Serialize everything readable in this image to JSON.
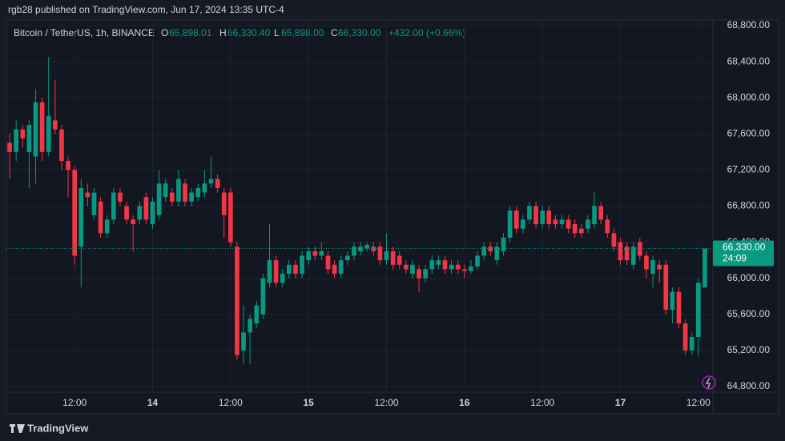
{
  "chart_data": {
    "type": "candlestick",
    "title": "rgb28 published on TradingView.com, Jun 17, 2024 13:35 UTC-4",
    "symbol": "Bitcoin / TetherUS, 1h, BINANCE",
    "legend": [
      {
        "key": "O",
        "value": "65,898.01"
      },
      {
        "key": "H",
        "value": "66,330.40"
      },
      {
        "key": "L",
        "value": "65,898.00"
      },
      {
        "key": "C",
        "value": "66,330.00"
      }
    ],
    "change": "+432.00 (+0.66%)",
    "last_price_label": "66,330.00",
    "countdown": "24:09",
    "brand": "TradingView",
    "up_color": "#089981",
    "down_color": "#f23645",
    "ylim": [
      64738,
      68862
    ],
    "yticks": [
      {
        "value": 64800,
        "label": "64,800.00"
      },
      {
        "value": 65200,
        "label": "65,200.00"
      },
      {
        "value": 65600,
        "label": "65,600.00"
      },
      {
        "value": 66000,
        "label": "66,000.00"
      },
      {
        "value": 66400,
        "label": "66,400.00"
      },
      {
        "value": 66800,
        "label": "66,800.00"
      },
      {
        "value": 67200,
        "label": "67,200.00"
      },
      {
        "value": 67600,
        "label": "67,600.00"
      },
      {
        "value": 68000,
        "label": "68,000.00"
      },
      {
        "value": 68400,
        "label": "68,400.00"
      },
      {
        "value": 68800,
        "label": "68,800.00"
      }
    ],
    "xticks": [
      {
        "value": 10,
        "label": "12:00"
      },
      {
        "value": 22,
        "label": "14"
      },
      {
        "value": 34,
        "label": "12:00"
      },
      {
        "value": 46,
        "label": "15"
      },
      {
        "value": 58,
        "label": "12:00"
      },
      {
        "value": 70,
        "label": "16"
      },
      {
        "value": 82,
        "label": "12:00"
      },
      {
        "value": 94,
        "label": "17"
      },
      {
        "value": 106,
        "label": "12:00"
      }
    ],
    "ohlc": [
      [
        67500,
        67600,
        67100,
        67400
      ],
      [
        67400,
        67750,
        67300,
        67650
      ],
      [
        67650,
        67700,
        67450,
        67550
      ],
      [
        67400,
        67750,
        67000,
        67700
      ],
      [
        67350,
        68100,
        67050,
        67950
      ],
      [
        67950,
        68000,
        67300,
        67400
      ],
      [
        67400,
        68450,
        67350,
        67800
      ],
      [
        67750,
        68200,
        67600,
        67650
      ],
      [
        67650,
        67700,
        67200,
        67300
      ],
      [
        67300,
        67350,
        66900,
        67200
      ],
      [
        67200,
        67250,
        66150,
        66250
      ],
      [
        66350,
        67100,
        65900,
        67000
      ],
      [
        66950,
        67050,
        66800,
        66900
      ],
      [
        66700,
        67000,
        66650,
        66950
      ],
      [
        66850,
        66900,
        66450,
        66500
      ],
      [
        66500,
        66700,
        66450,
        66650
      ],
      [
        66650,
        67000,
        66600,
        66950
      ],
      [
        66950,
        67000,
        66800,
        66850
      ],
      [
        66800,
        66850,
        66600,
        66650
      ],
      [
        66650,
        66700,
        66300,
        66600
      ],
      [
        66650,
        66850,
        66600,
        66800
      ],
      [
        66900,
        66950,
        66600,
        66650
      ],
      [
        66600,
        66900,
        66550,
        66850
      ],
      [
        66700,
        67200,
        66650,
        67050
      ],
      [
        66900,
        67100,
        66850,
        67050
      ],
      [
        66950,
        67000,
        66800,
        66850
      ],
      [
        66850,
        67200,
        66800,
        67100
      ],
      [
        67050,
        67100,
        66800,
        66850
      ],
      [
        66850,
        67000,
        66800,
        66950
      ],
      [
        66900,
        67050,
        66850,
        67000
      ],
      [
        66950,
        67200,
        66900,
        67050
      ],
      [
        67050,
        67350,
        67000,
        67100
      ],
      [
        67100,
        67150,
        66950,
        67000
      ],
      [
        66950,
        67000,
        66450,
        66700
      ],
      [
        66950,
        67000,
        66350,
        66400
      ],
      [
        66350,
        66400,
        65100,
        65150
      ],
      [
        65200,
        65700,
        65050,
        65400
      ],
      [
        65400,
        65600,
        65050,
        65550
      ],
      [
        65500,
        65750,
        65450,
        65700
      ],
      [
        65600,
        66050,
        65550,
        66000
      ],
      [
        65950,
        66600,
        65900,
        66200
      ],
      [
        66200,
        66250,
        65900,
        65950
      ],
      [
        65950,
        66100,
        65900,
        66050
      ],
      [
        66050,
        66200,
        66000,
        66150
      ],
      [
        66150,
        66200,
        66000,
        66050
      ],
      [
        66050,
        66300,
        66000,
        66250
      ],
      [
        66200,
        66350,
        66150,
        66300
      ],
      [
        66300,
        66350,
        66200,
        66250
      ],
      [
        66250,
        66400,
        66200,
        66300
      ],
      [
        66250,
        66300,
        66050,
        66100
      ],
      [
        66150,
        66200,
        66000,
        66050
      ],
      [
        66050,
        66250,
        66000,
        66200
      ],
      [
        66200,
        66300,
        66150,
        66250
      ],
      [
        66250,
        66400,
        66200,
        66350
      ],
      [
        66300,
        66400,
        66250,
        66350
      ],
      [
        66330,
        66400,
        66300,
        66370
      ],
      [
        66350,
        66400,
        66250,
        66300
      ],
      [
        66350,
        66400,
        66150,
        66200
      ],
      [
        66200,
        66500,
        66150,
        66300
      ],
      [
        66300,
        66350,
        66100,
        66150
      ],
      [
        66250,
        66300,
        66100,
        66150
      ],
      [
        66150,
        66200,
        66050,
        66100
      ],
      [
        66050,
        66200,
        66000,
        66150
      ],
      [
        66100,
        66150,
        65850,
        66000
      ],
      [
        66000,
        66150,
        65950,
        66100
      ],
      [
        66100,
        66250,
        66050,
        66200
      ],
      [
        66150,
        66250,
        66100,
        66200
      ],
      [
        66200,
        66250,
        66050,
        66100
      ],
      [
        66100,
        66200,
        66050,
        66150
      ],
      [
        66150,
        66200,
        66050,
        66100
      ],
      [
        66100,
        66150,
        66000,
        66080
      ],
      [
        66080,
        66200,
        66050,
        66130
      ],
      [
        66130,
        66300,
        66100,
        66250
      ],
      [
        66250,
        66400,
        66200,
        66350
      ],
      [
        66350,
        66400,
        66250,
        66300
      ],
      [
        66200,
        66400,
        66150,
        66350
      ],
      [
        66300,
        66500,
        66250,
        66450
      ],
      [
        66450,
        66800,
        66400,
        66750
      ],
      [
        66750,
        66800,
        66500,
        66550
      ],
      [
        66550,
        66700,
        66500,
        66650
      ],
      [
        66650,
        66850,
        66600,
        66800
      ],
      [
        66800,
        66850,
        66550,
        66600
      ],
      [
        66600,
        66800,
        66550,
        66750
      ],
      [
        66750,
        66800,
        66550,
        66600
      ],
      [
        66650,
        66700,
        66550,
        66600
      ],
      [
        66600,
        66700,
        66550,
        66650
      ],
      [
        66650,
        66700,
        66500,
        66550
      ],
      [
        66600,
        66650,
        66450,
        66500
      ],
      [
        66550,
        66600,
        66450,
        66500
      ],
      [
        66550,
        66700,
        66500,
        66650
      ],
      [
        66600,
        66950,
        66550,
        66800
      ],
      [
        66800,
        66850,
        66600,
        66650
      ],
      [
        66650,
        66700,
        66450,
        66500
      ],
      [
        66500,
        66550,
        66300,
        66350
      ],
      [
        66400,
        66450,
        66150,
        66200
      ],
      [
        66350,
        66400,
        66150,
        66200
      ],
      [
        66150,
        66400,
        66100,
        66350
      ],
      [
        66400,
        66450,
        66200,
        66250
      ],
      [
        66250,
        66300,
        66000,
        66100
      ],
      [
        66050,
        66250,
        65900,
        66200
      ],
      [
        66150,
        66200,
        65950,
        66100
      ],
      [
        66150,
        66200,
        65600,
        65650
      ],
      [
        65650,
        65900,
        65500,
        65850
      ],
      [
        65850,
        65900,
        65450,
        65500
      ],
      [
        65500,
        65550,
        65150,
        65200
      ],
      [
        65200,
        65400,
        65150,
        65350
      ],
      [
        65350,
        66000,
        65150,
        65950
      ],
      [
        65898.01,
        66330.4,
        65898,
        66330
      ]
    ]
  }
}
